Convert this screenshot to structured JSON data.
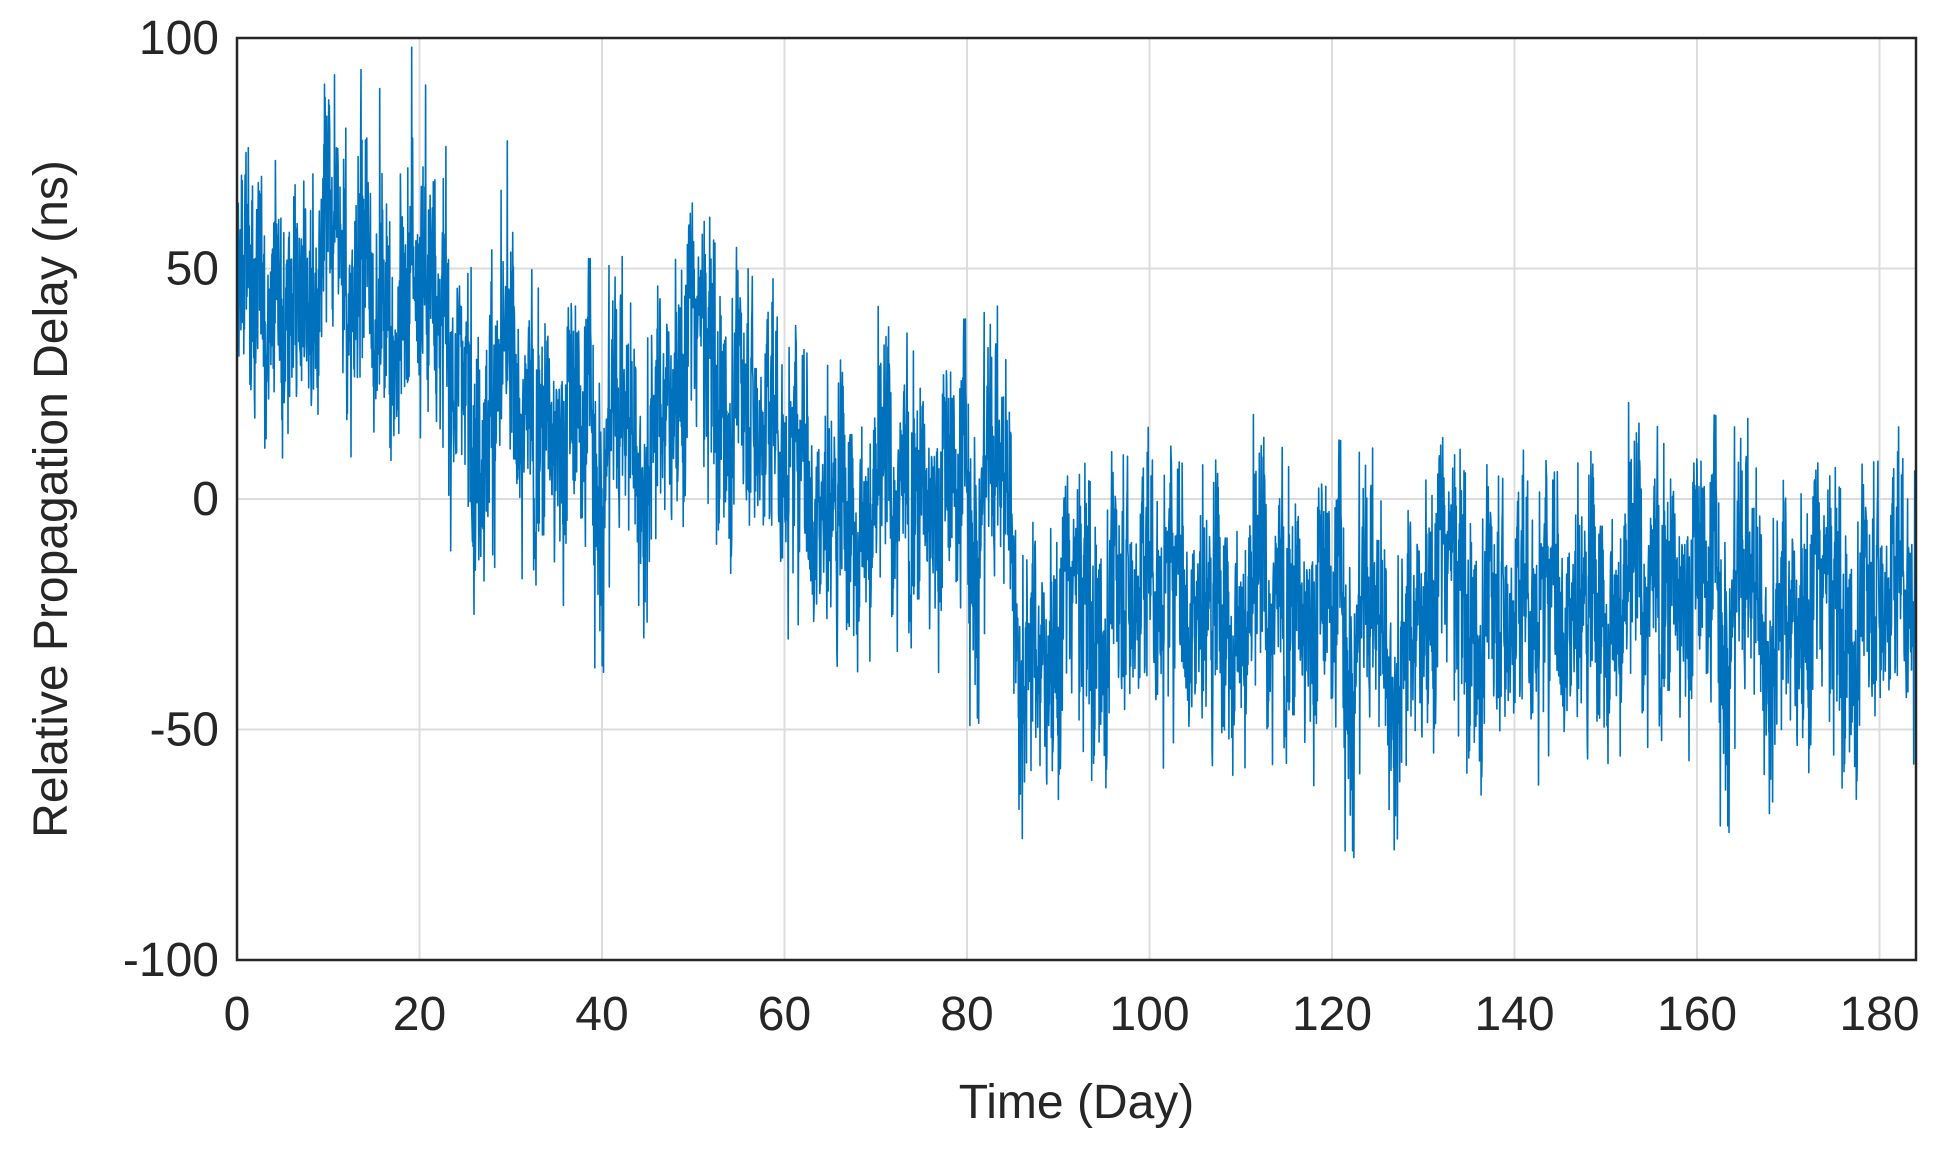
{
  "chart_data": {
    "type": "line",
    "title": "",
    "xlabel": "Time (Day)",
    "ylabel": "Relative Propagation Delay (ns)",
    "xlim": [
      0,
      184
    ],
    "ylim": [
      -100,
      100
    ],
    "xticks": [
      0,
      20,
      40,
      60,
      80,
      100,
      120,
      140,
      160,
      180
    ],
    "yticks": [
      -100,
      -50,
      0,
      50,
      100
    ],
    "xtick_labels": [
      "0",
      "20",
      "40",
      "60",
      "80",
      "100",
      "120",
      "140",
      "160",
      "180"
    ],
    "ytick_labels": [
      "-100",
      "-50",
      "0",
      "50",
      "100"
    ],
    "grid": true,
    "legend": "none",
    "series": [
      {
        "color": "#0072BD",
        "x": [
          0,
          2,
          4,
          6,
          8,
          10,
          12,
          14,
          16,
          18,
          20,
          22,
          23,
          24,
          26,
          28,
          30,
          32,
          34,
          36,
          38,
          40,
          42,
          44,
          46,
          48,
          50,
          52,
          54,
          56,
          58,
          60,
          62,
          64,
          66,
          68,
          70,
          72,
          74,
          76,
          78,
          80,
          82,
          84,
          85,
          86,
          88,
          90,
          92,
          94,
          96,
          98,
          100,
          102,
          104,
          106,
          108,
          110,
          112,
          114,
          116,
          118,
          120,
          122,
          124,
          126,
          128,
          130,
          132,
          134,
          136,
          138,
          140,
          142,
          144,
          146,
          148,
          150,
          152,
          154,
          156,
          158,
          160,
          162,
          164,
          166,
          168,
          170,
          172,
          174,
          176,
          178,
          180,
          182,
          184
        ],
        "values": [
          42,
          45,
          48,
          50,
          50,
          49,
          47,
          46,
          45,
          44,
          44,
          44,
          40,
          30,
          25,
          22,
          21,
          20,
          19,
          18,
          17,
          17,
          17,
          18,
          22,
          30,
          35,
          32,
          28,
          23,
          18,
          13,
          8,
          4,
          3,
          4,
          6,
          7,
          6,
          4,
          3,
          4,
          7,
          6,
          3,
          -27,
          -30,
          -27,
          -22,
          -20,
          -18,
          -17,
          -16,
          -16,
          -17,
          -18,
          -19,
          -18,
          -17,
          -18,
          -20,
          -21,
          -22,
          -23,
          -24,
          -26,
          -28,
          -18,
          -16,
          -18,
          -20,
          -22,
          -22,
          -20,
          -19,
          -18,
          -17,
          -16,
          -15,
          -14,
          -14,
          -15,
          -16,
          -17,
          -18,
          -18,
          -19,
          -20,
          -21,
          -22,
          -22,
          -21,
          -18,
          -16,
          -15
        ],
        "noise_amplitude_ns": 22
      }
    ]
  }
}
